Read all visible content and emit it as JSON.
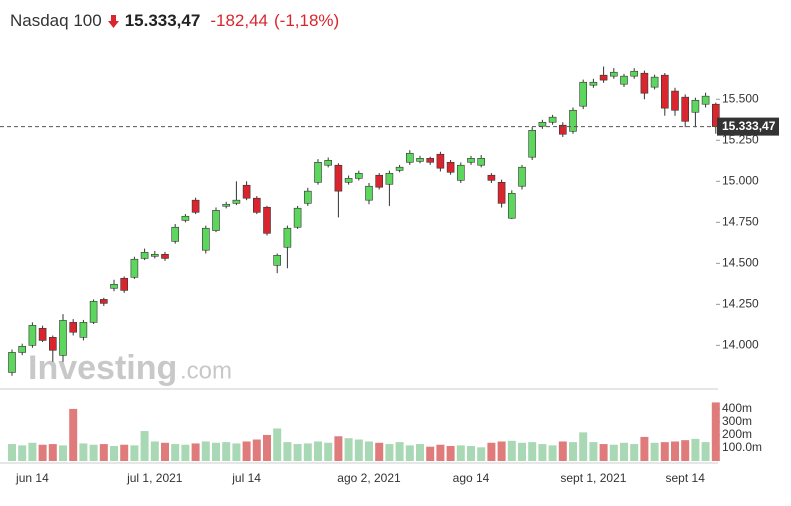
{
  "chart_data": {
    "type": "candlestick",
    "title": "Nasdaq 100",
    "last_price": {
      "value": 15333.47,
      "label": "15.333,47"
    },
    "change": "-182,44",
    "change_pct": "(-1,18%)",
    "watermark": {
      "brand": "Investing",
      "suffix": ".com"
    },
    "up_color": "#5cd65c",
    "down_color": "#d9262e",
    "categories": [
      null,
      null,
      "jun 14",
      null,
      null,
      null,
      null,
      null,
      null,
      null,
      null,
      null,
      null,
      null,
      "jul 1, 2021",
      null,
      null,
      null,
      null,
      null,
      null,
      null,
      null,
      "jul 14",
      null,
      null,
      null,
      null,
      null,
      null,
      null,
      null,
      null,
      null,
      null,
      "ago 2, 2021",
      null,
      null,
      null,
      null,
      null,
      null,
      null,
      null,
      null,
      "ago 14",
      null,
      null,
      null,
      null,
      null,
      null,
      null,
      null,
      null,
      null,
      null,
      "sept 1, 2021",
      null,
      null,
      null,
      null,
      null,
      null,
      null,
      null,
      "sept 14",
      null,
      null,
      null
    ],
    "open": [
      13835,
      13957,
      14000,
      14104,
      14049,
      13939,
      14140,
      14049,
      14140,
      14280,
      14348,
      14409,
      14415,
      14530,
      14543,
      14555,
      14634,
      14762,
      14885,
      14580,
      14700,
      14848,
      14866,
      14976,
      14897,
      14842,
      14488,
      14598,
      14720,
      14866,
      14994,
      15098,
      15098,
      14994,
      15018,
      14885,
      15037,
      14982,
      15067,
      15116,
      15122,
      15140,
      15165,
      15116,
      15006,
      15116,
      15098,
      15037,
      14994,
      14775,
      14970,
      15147,
      15336,
      15360,
      15342,
      15305,
      15458,
      15586,
      15647,
      15641,
      15592,
      15641,
      15659,
      15574,
      15647,
      15550,
      15513,
      15421,
      15470,
      15470
    ],
    "high": [
      13975,
      14010,
      14140,
      14120,
      14060,
      14190,
      14160,
      14155,
      14280,
      14290,
      14400,
      14420,
      14540,
      14590,
      14575,
      14570,
      14740,
      14800,
      14900,
      14730,
      14840,
      14875,
      15000,
      15000,
      14910,
      14850,
      14560,
      14730,
      14850,
      14960,
      15135,
      15145,
      15110,
      15035,
      15065,
      14990,
      15050,
      15065,
      15100,
      15190,
      15155,
      15150,
      15180,
      15130,
      15115,
      15155,
      15160,
      15050,
      15010,
      14945,
      15100,
      15330,
      15375,
      15405,
      15360,
      15450,
      15620,
      15625,
      15700,
      15690,
      15655,
      15690,
      15675,
      15650,
      15660,
      15570,
      15530,
      15510,
      15540,
      15480
    ],
    "low": [
      13815,
      13940,
      13985,
      14020,
      13900,
      13900,
      14060,
      14030,
      14130,
      14240,
      14330,
      14320,
      14405,
      14520,
      14530,
      14515,
      14620,
      14750,
      14800,
      14560,
      14690,
      14835,
      14855,
      14885,
      14800,
      14670,
      14440,
      14470,
      14710,
      14850,
      14980,
      15085,
      14780,
      14980,
      15005,
      14860,
      14950,
      14850,
      15055,
      15100,
      15110,
      15100,
      15060,
      15040,
      14990,
      15100,
      15085,
      14990,
      14840,
      14770,
      14950,
      15130,
      15320,
      15345,
      15270,
      15290,
      15440,
      15570,
      15600,
      15625,
      15575,
      15625,
      15500,
      15560,
      15400,
      15400,
      15330,
      15330,
      15450,
      15290
    ],
    "close": [
      13957,
      13994,
      14122,
      14030,
      13970,
      14152,
      14080,
      14140,
      14268,
      14256,
      14372,
      14335,
      14525,
      14567,
      14555,
      14530,
      14720,
      14787,
      14811,
      14714,
      14823,
      14860,
      14885,
      14897,
      14811,
      14683,
      14549,
      14714,
      14836,
      14940,
      15116,
      15128,
      14940,
      15018,
      15049,
      14970,
      14964,
      15049,
      15086,
      15171,
      15140,
      15116,
      15080,
      15055,
      15098,
      15140,
      15140,
      15006,
      14866,
      14927,
      15086,
      15311,
      15360,
      15391,
      15287,
      15433,
      15604,
      15604,
      15617,
      15665,
      15641,
      15671,
      15537,
      15635,
      15446,
      15433,
      15366,
      15494,
      15519,
      15333.47
    ],
    "ylim": [
      13740,
      15770
    ],
    "yticks": [
      {
        "value": 14000,
        "label": "14.000"
      },
      {
        "value": 14250,
        "label": "14.250"
      },
      {
        "value": 14500,
        "label": "14.500"
      },
      {
        "value": 14750,
        "label": "14.750"
      },
      {
        "value": 15000,
        "label": "15.000"
      },
      {
        "value": 15250,
        "label": "15.250"
      },
      {
        "value": 15500,
        "label": "15.500"
      }
    ],
    "volume": {
      "up_color": "#a8d8b4",
      "down_color": "#e07b7b",
      "values": [
        130,
        120,
        140,
        125,
        130,
        120,
        400,
        135,
        125,
        130,
        115,
        125,
        120,
        230,
        150,
        140,
        130,
        125,
        135,
        150,
        140,
        145,
        135,
        150,
        165,
        200,
        250,
        145,
        130,
        135,
        150,
        140,
        190,
        175,
        165,
        150,
        140,
        130,
        145,
        120,
        130,
        110,
        125,
        115,
        120,
        115,
        105,
        140,
        150,
        155,
        140,
        145,
        130,
        120,
        150,
        145,
        220,
        145,
        130,
        125,
        140,
        130,
        185,
        140,
        145,
        150,
        160,
        170,
        145,
        450
      ],
      "ylim": [
        0,
        530
      ],
      "yticks": [
        {
          "value": 100,
          "label": "100.0m"
        },
        {
          "value": 200,
          "label": "200m"
        },
        {
          "value": 300,
          "label": "300m"
        },
        {
          "value": 400,
          "label": "400m"
        }
      ]
    }
  }
}
